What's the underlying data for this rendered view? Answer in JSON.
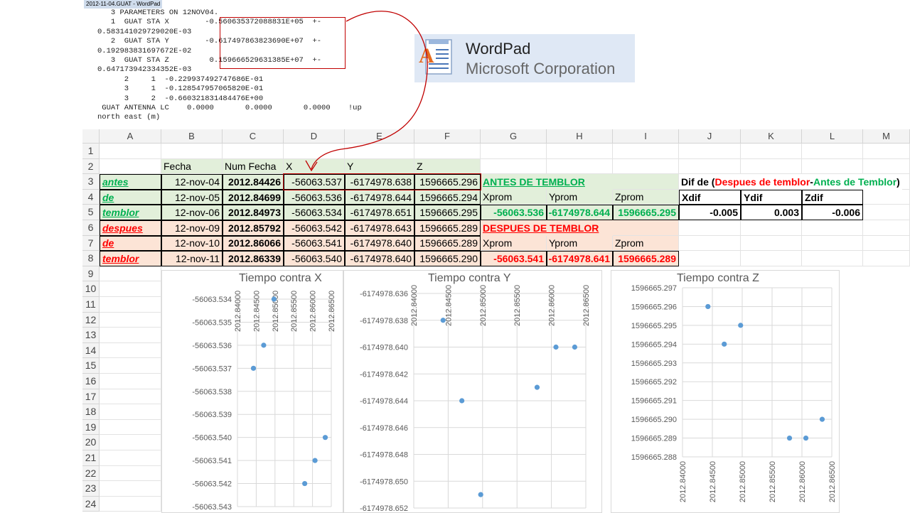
{
  "wordpad": {
    "title": "2012-11-04.GUAT - WordPad",
    "lines": [
      "   3 PARAMETERS ON 12NOV04.",
      "   1  GUAT STA X        -0.560635372088831E+05  +-",
      "0.583141029729020E-03",
      "   2  GUAT STA Y        -0.617497863823690E+07  +-",
      "0.192983831697672E-02",
      "   3  GUAT STA Z         0.159666529631385E+07  +-",
      "0.647173942334352E-03",
      "      2     1  -0.229937492747686E-01",
      "      3     1  -0.128547957065820E-01",
      "      3     2  -0.660321831484476E+00",
      " GUAT ANTENNA LC    0.0000       0.0000       0.0000    !up",
      "north east (m)"
    ],
    "logo": {
      "name": "WordPad",
      "company": "Microsoft Corporation"
    }
  },
  "sheet": {
    "columns": [
      "A",
      "B",
      "C",
      "D",
      "E",
      "F",
      "G",
      "H",
      "I",
      "J",
      "K",
      "L",
      "M"
    ],
    "rows": [
      "1",
      "2",
      "3",
      "4",
      "5",
      "6",
      "7",
      "8",
      "9",
      "10",
      "11",
      "12",
      "13",
      "14",
      "15",
      "16",
      "17",
      "18",
      "19",
      "20",
      "21",
      "22",
      "23",
      "24"
    ],
    "headers": {
      "fecha": "Fecha",
      "num_fecha": "Num Fecha",
      "x": "X",
      "y": "Y",
      "z": "Z"
    },
    "side_labels": {
      "antes": [
        "antes",
        "de",
        "temblor"
      ],
      "despues": [
        "despues",
        "de",
        "temblor"
      ]
    },
    "data_rows": [
      {
        "fecha": "12-nov-04",
        "num": "2012.84426",
        "x": "-56063.537",
        "y": "-6174978.638",
        "z": "1596665.296"
      },
      {
        "fecha": "12-nov-05",
        "num": "2012.84699",
        "x": "-56063.536",
        "y": "-6174978.644",
        "z": "1596665.294"
      },
      {
        "fecha": "12-nov-06",
        "num": "2012.84973",
        "x": "-56063.534",
        "y": "-6174978.651",
        "z": "1596665.295"
      },
      {
        "fecha": "12-nov-09",
        "num": "2012.85792",
        "x": "-56063.542",
        "y": "-6174978.643",
        "z": "1596665.289"
      },
      {
        "fecha": "12-nov-10",
        "num": "2012.86066",
        "x": "-56063.541",
        "y": "-6174978.640",
        "z": "1596665.289"
      },
      {
        "fecha": "12-nov-11",
        "num": "2012.86339",
        "x": "-56063.540",
        "y": "-6174978.640",
        "z": "1596665.290"
      }
    ],
    "antes_title": "ANTES DE TEMBLOR",
    "despues_title": "DESPUES DE TEMBLOR",
    "prom_headers": [
      "Xprom",
      "Yprom",
      "Zprom"
    ],
    "antes_prom": [
      "-56063.536",
      "-6174978.644",
      "1596665.295"
    ],
    "despues_prom": [
      "-56063.541",
      "-6174978.641",
      "1596665.289"
    ],
    "dif": {
      "prefix": "Dif de (",
      "despues": "Despues de temblor",
      "minus": " - ",
      "antes": "Antes de Temblor",
      "suffix": ")",
      "headers": [
        "Xdif",
        "Ydif",
        "Zdif"
      ],
      "values": [
        "-0.005",
        "0.003",
        "-0.006"
      ]
    }
  },
  "colors": {
    "green": "#00b050",
    "red": "#ff0000",
    "marker": "#5b9bd5",
    "green_fill": "#e2efda",
    "pink_fill": "#fce4d6"
  },
  "chart_data": [
    {
      "type": "scatter",
      "title": "Tiempo contra X",
      "x": [
        2012.84426,
        2012.84699,
        2012.84973,
        2012.85792,
        2012.86066,
        2012.86339
      ],
      "y": [
        -56063.537,
        -56063.536,
        -56063.534,
        -56063.542,
        -56063.541,
        -56063.54
      ],
      "xlim": [
        2012.84,
        2012.865
      ],
      "ylim": [
        -56063.543,
        -56063.534
      ],
      "x_ticks": [
        "2012.84000",
        "2012.84500",
        "2012.85000",
        "2012.85500",
        "2012.86000",
        "2012.86500"
      ],
      "y_ticks": [
        "-56063.534",
        "-56063.535",
        "-56063.536",
        "-56063.537",
        "-56063.538",
        "-56063.539",
        "-56063.540",
        "-56063.541",
        "-56063.542",
        "-56063.543"
      ],
      "x_axis_position": "top",
      "grid": true
    },
    {
      "type": "scatter",
      "title": "Tiempo contra Y",
      "x": [
        2012.84426,
        2012.84699,
        2012.84973,
        2012.85792,
        2012.86066,
        2012.86339
      ],
      "y": [
        -6174978.638,
        -6174978.644,
        -6174978.651,
        -6174978.643,
        -6174978.64,
        -6174978.64
      ],
      "xlim": [
        2012.84,
        2012.865
      ],
      "ylim": [
        -6174978.652,
        -6174978.636
      ],
      "x_ticks": [
        "2012.84000",
        "2012.84500",
        "2012.85000",
        "2012.85500",
        "2012.86000",
        "2012.86500"
      ],
      "y_ticks": [
        "-6174978.636",
        "-6174978.638",
        "-6174978.640",
        "-6174978.642",
        "-6174978.644",
        "-6174978.646",
        "-6174978.648",
        "-6174978.650",
        "-6174978.652"
      ],
      "x_axis_position": "top",
      "grid": true
    },
    {
      "type": "scatter",
      "title": "Tiempo contra Z",
      "x": [
        2012.84426,
        2012.84699,
        2012.84973,
        2012.85792,
        2012.86066,
        2012.86339
      ],
      "y": [
        1596665.296,
        1596665.294,
        1596665.295,
        1596665.289,
        1596665.289,
        1596665.29
      ],
      "xlim": [
        2012.84,
        2012.865
      ],
      "ylim": [
        1596665.288,
        1596665.297
      ],
      "x_ticks": [
        "2012.84000",
        "2012.84500",
        "2012.85000",
        "2012.85500",
        "2012.86000",
        "2012.86500"
      ],
      "y_ticks": [
        "1596665.297",
        "1596665.296",
        "1596665.295",
        "1596665.294",
        "1596665.293",
        "1596665.292",
        "1596665.291",
        "1596665.290",
        "1596665.289",
        "1596665.288"
      ],
      "x_axis_position": "bottom",
      "grid": true
    }
  ]
}
